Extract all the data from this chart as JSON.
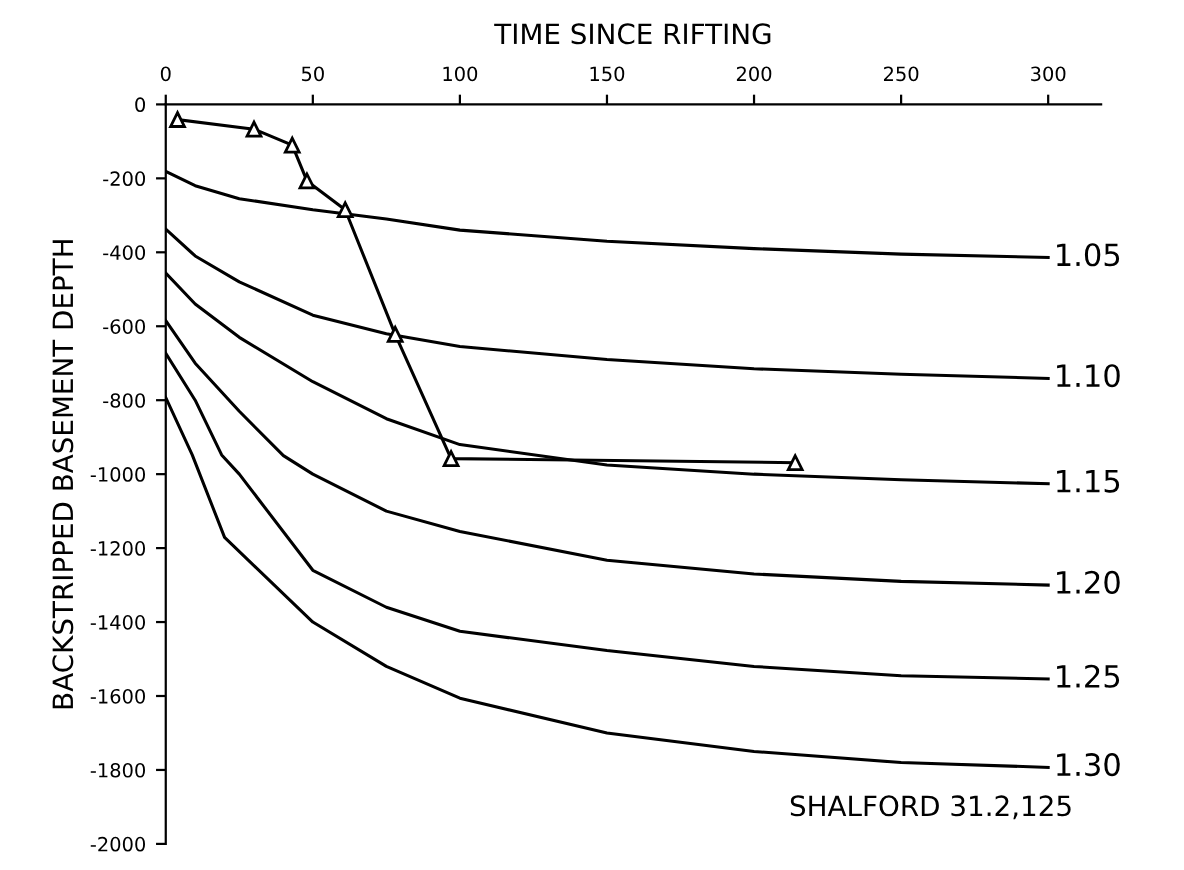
{
  "chart_data": {
    "type": "line",
    "xlabel": "TIME SINCE RIFTING",
    "ylabel": "BACKSTRIPPED BASEMENT DEPTH",
    "xlim": [
      0,
      318
    ],
    "xticks": [
      0,
      50,
      100,
      150,
      200,
      250,
      300
    ],
    "ylim": [
      -2000,
      0
    ],
    "yticks": [
      0,
      -200,
      -400,
      -600,
      -800,
      -1000,
      -1200,
      -1400,
      -1600,
      -1800,
      -2000
    ],
    "grid": false,
    "legend": false,
    "line_style": "solid",
    "series": [
      {
        "name": "1.05",
        "color": "#000000",
        "marker": "none",
        "x": [
          0,
          10,
          25,
          50,
          75,
          100,
          150,
          200,
          250,
          300
        ],
        "values": [
          -181,
          -220,
          -255,
          -285,
          -310,
          -340,
          -370,
          -390,
          -405,
          -414
        ]
      },
      {
        "name": "1.10",
        "color": "#000000",
        "marker": "none",
        "x": [
          0,
          10,
          25,
          50,
          75,
          100,
          150,
          200,
          250,
          300
        ],
        "values": [
          -337,
          -410,
          -480,
          -570,
          -620,
          -655,
          -690,
          -715,
          -730,
          -741
        ]
      },
      {
        "name": "1.15",
        "color": "#000000",
        "marker": "none",
        "x": [
          0,
          10,
          25,
          50,
          75,
          100,
          150,
          200,
          250,
          300
        ],
        "values": [
          -456,
          -540,
          -630,
          -750,
          -850,
          -920,
          -975,
          -1000,
          -1015,
          -1026
        ]
      },
      {
        "name": "1.20",
        "color": "#000000",
        "marker": "none",
        "x": [
          0,
          10,
          25,
          40,
          50,
          75,
          100,
          150,
          200,
          250,
          300
        ],
        "values": [
          -585,
          -700,
          -830,
          -950,
          -1000,
          -1100,
          -1155,
          -1233,
          -1270,
          -1290,
          -1300
        ]
      },
      {
        "name": "1.25",
        "color": "#000000",
        "marker": "none",
        "x": [
          0,
          10,
          19,
          25,
          50,
          75,
          100,
          150,
          200,
          250,
          300
        ],
        "values": [
          -673,
          -800,
          -948,
          -1000,
          -1260,
          -1360,
          -1425,
          -1477,
          -1520,
          -1545,
          -1554
        ]
      },
      {
        "name": "1.30",
        "color": "#000000",
        "marker": "none",
        "x": [
          0,
          9,
          20,
          50,
          75,
          100,
          150,
          200,
          250,
          300
        ],
        "values": [
          -793,
          -948,
          -1171,
          -1400,
          -1520,
          -1606,
          -1700,
          -1750,
          -1780,
          -1793
        ]
      },
      {
        "color": "#000000",
        "marker": "triangle",
        "x": [
          4,
          30,
          43,
          48,
          61,
          78,
          97,
          214
        ],
        "values": [
          -41,
          -67,
          -110,
          -207,
          -285,
          -622,
          -958,
          -969
        ]
      }
    ],
    "annotations": [
      "SHALFORD 31.2,125"
    ]
  }
}
